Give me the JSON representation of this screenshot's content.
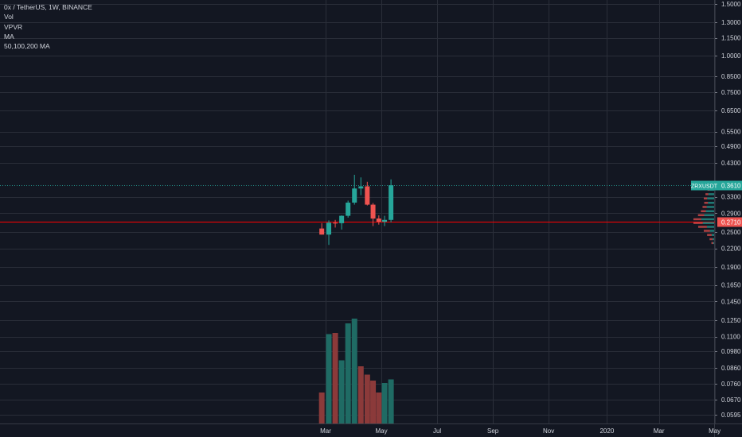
{
  "chart_data": {
    "type": "candlestick",
    "symbol_header": "0x / TetherUS, 1W, BINANCE",
    "indicators": [
      "Vol",
      "VPVR",
      "MA",
      "50,100,200 MA"
    ],
    "y_axis": {
      "scale": "log",
      "ticks": [
        0.0595,
        0.067,
        0.076,
        0.086,
        0.098,
        0.11,
        0.125,
        0.145,
        0.165,
        0.19,
        0.22,
        0.25,
        0.29,
        0.33,
        0.43,
        0.49,
        0.55,
        0.65,
        0.75,
        0.85,
        1.0,
        1.15,
        1.3,
        1.5
      ],
      "tick_labels": [
        "0.0595",
        "0.0670",
        "0.0760",
        "0.0860",
        "0.0980",
        "0.1100",
        "0.1250",
        "0.1450",
        "0.1650",
        "0.1900",
        "0.2200",
        "0.2500",
        "0.2900",
        "0.3300",
        "0.4300",
        "0.4900",
        "0.5500",
        "0.6500",
        "0.7500",
        "0.8500",
        "1.0000",
        "1.1500",
        "1.3000",
        "1.5000"
      ]
    },
    "x_axis": {
      "tick_labels": [
        "Mar",
        "May",
        "Jul",
        "Sep",
        "Nov",
        "2020",
        "Mar",
        "May"
      ],
      "tick_weeks": [
        0,
        8.7,
        17.4,
        26.1,
        34.8,
        43.9,
        52.0,
        60.7
      ]
    },
    "candles": [
      {
        "week": -0.6,
        "open": 0.257,
        "high": 0.268,
        "low": 0.245,
        "close": 0.245
      },
      {
        "week": 0.5,
        "open": 0.245,
        "high": 0.274,
        "low": 0.226,
        "close": 0.269
      },
      {
        "week": 1.5,
        "open": 0.269,
        "high": 0.275,
        "low": 0.259,
        "close": 0.268
      },
      {
        "week": 2.5,
        "open": 0.268,
        "high": 0.285,
        "low": 0.255,
        "close": 0.284
      },
      {
        "week": 3.5,
        "open": 0.284,
        "high": 0.32,
        "low": 0.28,
        "close": 0.315
      },
      {
        "week": 4.5,
        "open": 0.315,
        "high": 0.392,
        "low": 0.31,
        "close": 0.352
      },
      {
        "week": 5.5,
        "open": 0.352,
        "high": 0.384,
        "low": 0.334,
        "close": 0.358
      },
      {
        "week": 6.5,
        "open": 0.358,
        "high": 0.371,
        "low": 0.308,
        "close": 0.31
      },
      {
        "week": 7.4,
        "open": 0.31,
        "high": 0.314,
        "low": 0.262,
        "close": 0.278
      },
      {
        "week": 8.3,
        "open": 0.278,
        "high": 0.285,
        "low": 0.265,
        "close": 0.271
      },
      {
        "week": 9.2,
        "open": 0.271,
        "high": 0.284,
        "low": 0.262,
        "close": 0.275
      },
      {
        "week": 10.2,
        "open": 0.275,
        "high": 0.378,
        "low": 0.27,
        "close": 0.361
      }
    ],
    "volume": [
      {
        "week": -0.6,
        "value": 0.26,
        "up": false
      },
      {
        "week": 0.5,
        "value": 0.75,
        "up": true
      },
      {
        "week": 1.5,
        "value": 0.76,
        "up": false
      },
      {
        "week": 2.5,
        "value": 0.53,
        "up": true
      },
      {
        "week": 3.5,
        "value": 0.84,
        "up": true
      },
      {
        "week": 4.5,
        "value": 0.88,
        "up": true
      },
      {
        "week": 5.5,
        "value": 0.48,
        "up": false
      },
      {
        "week": 6.5,
        "value": 0.41,
        "up": false
      },
      {
        "week": 7.4,
        "value": 0.36,
        "up": false
      },
      {
        "week": 8.3,
        "value": 0.26,
        "up": false
      },
      {
        "week": 9.2,
        "value": 0.34,
        "up": true
      },
      {
        "week": 10.2,
        "value": 0.37,
        "up": true
      }
    ],
    "vpvr": [
      {
        "price": 0.36,
        "up": 0.2,
        "down": 0.08
      },
      {
        "price": 0.348,
        "up": 0.22,
        "down": 0.1
      },
      {
        "price": 0.336,
        "up": 0.28,
        "down": 0.14
      },
      {
        "price": 0.325,
        "up": 0.34,
        "down": 0.16
      },
      {
        "price": 0.314,
        "up": 0.3,
        "down": 0.18
      },
      {
        "price": 0.304,
        "up": 0.36,
        "down": 0.2
      },
      {
        "price": 0.294,
        "up": 0.4,
        "down": 0.24
      },
      {
        "price": 0.285,
        "up": 0.48,
        "down": 0.3
      },
      {
        "price": 0.276,
        "up": 0.62,
        "down": 0.38
      },
      {
        "price": 0.268,
        "up": 0.55,
        "down": 0.45
      },
      {
        "price": 0.26,
        "up": 0.35,
        "down": 0.42
      },
      {
        "price": 0.252,
        "up": 0.2,
        "down": 0.3
      },
      {
        "price": 0.244,
        "up": 0.12,
        "down": 0.22
      },
      {
        "price": 0.236,
        "up": 0.08,
        "down": 0.14
      },
      {
        "price": 0.229,
        "up": 0.05,
        "down": 0.08
      }
    ],
    "last_price": {
      "symbol": "ZRXUSDT",
      "value_label": "0.3610",
      "value": 0.361
    },
    "price_line": {
      "value_label": "0.2710",
      "value": 0.271
    },
    "colors": {
      "background": "#131722",
      "grid": "#2a2e39",
      "text": "#d1d4dc",
      "up": "#26a69a",
      "down": "#ef5350",
      "volume_up": "#1f6b64",
      "volume_down": "#8b3a3a",
      "price_line": "#ff0000"
    }
  }
}
